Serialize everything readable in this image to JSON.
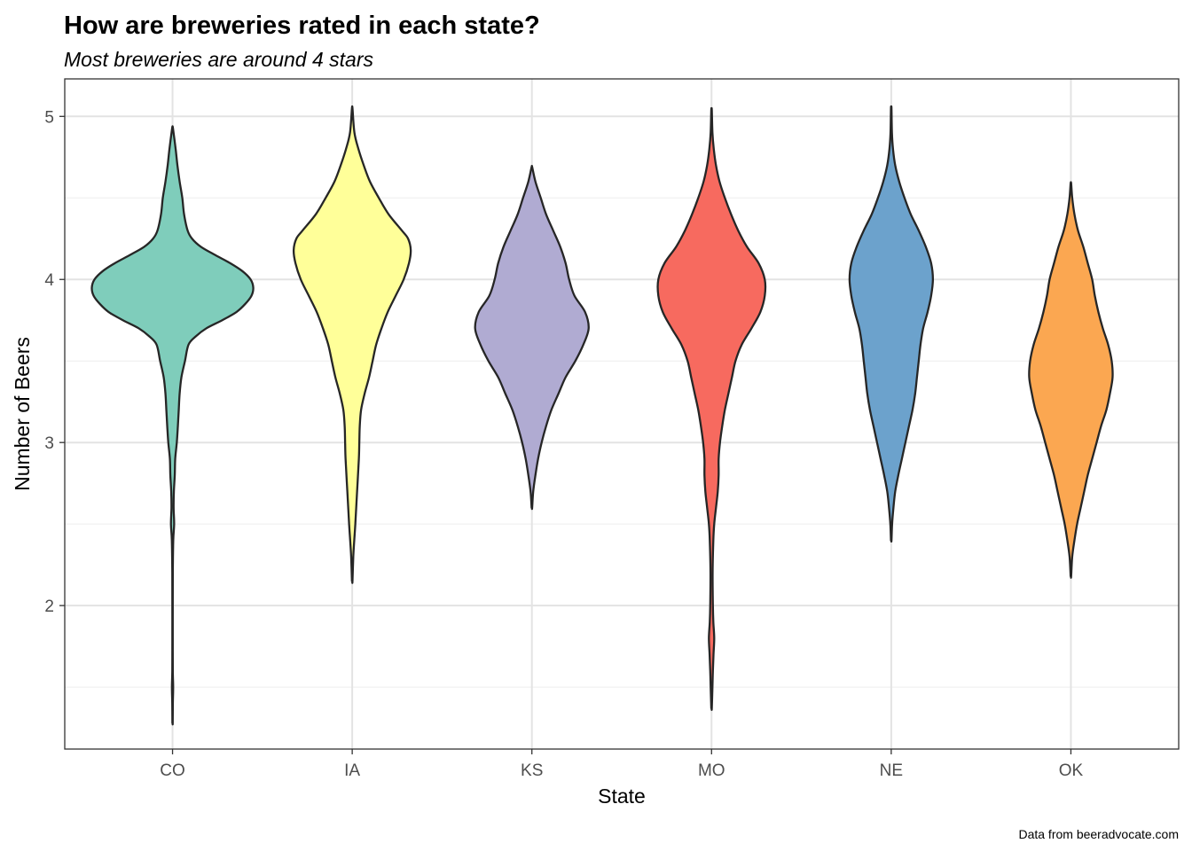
{
  "chart_data": {
    "type": "violin",
    "title": "How are breweries rated in each state?",
    "subtitle": "Most breweries are around 4 stars",
    "xlabel": "State",
    "ylabel": "Number of Beers",
    "caption": "Data from beeradvocate.com",
    "ylim": [
      1.12,
      5.23
    ],
    "yticks": [
      2,
      3,
      4,
      5
    ],
    "grid": true,
    "legend": "none",
    "categories": [
      "CO",
      "IA",
      "KS",
      "MO",
      "NE",
      "OK"
    ],
    "series": [
      {
        "category": "CO",
        "color": "#7fcdbb",
        "min": 1.28,
        "max": 4.93,
        "profile": [
          [
            1.28,
            0.2
          ],
          [
            1.4,
            0.35
          ],
          [
            1.5,
            0.7
          ],
          [
            1.6,
            0.3
          ],
          [
            1.8,
            0.25
          ],
          [
            2.0,
            0.25
          ],
          [
            2.2,
            0.3
          ],
          [
            2.4,
            0.8
          ],
          [
            2.5,
            1.8
          ],
          [
            2.6,
            1.2
          ],
          [
            2.7,
            1.5
          ],
          [
            2.8,
            2.5
          ],
          [
            2.9,
            3.0
          ],
          [
            3.0,
            4.8
          ],
          [
            3.1,
            6.0
          ],
          [
            3.2,
            7.0
          ],
          [
            3.3,
            8.0
          ],
          [
            3.4,
            10.0
          ],
          [
            3.5,
            14.0
          ],
          [
            3.6,
            18.0
          ],
          [
            3.65,
            26.0
          ],
          [
            3.7,
            38.0
          ],
          [
            3.75,
            56.0
          ],
          [
            3.8,
            72.0
          ],
          [
            3.85,
            82.0
          ],
          [
            3.9,
            89.0
          ],
          [
            3.95,
            91.0
          ],
          [
            4.0,
            88.0
          ],
          [
            4.05,
            79.0
          ],
          [
            4.1,
            65.0
          ],
          [
            4.15,
            48.0
          ],
          [
            4.2,
            32.0
          ],
          [
            4.25,
            22.0
          ],
          [
            4.3,
            17.0
          ],
          [
            4.4,
            13.0
          ],
          [
            4.5,
            11.0
          ],
          [
            4.6,
            8.0
          ],
          [
            4.7,
            5.5
          ],
          [
            4.8,
            3.5
          ],
          [
            4.93,
            0.4
          ]
        ]
      },
      {
        "category": "IA",
        "color": "#ffff99",
        "min": 2.15,
        "max": 5.05,
        "profile": [
          [
            2.15,
            0.3
          ],
          [
            2.3,
            1.2
          ],
          [
            2.4,
            2.3
          ],
          [
            2.5,
            3.5
          ],
          [
            2.7,
            5.5
          ],
          [
            2.9,
            7.5
          ],
          [
            3.0,
            8.0
          ],
          [
            3.1,
            8.5
          ],
          [
            3.2,
            10.0
          ],
          [
            3.3,
            14.0
          ],
          [
            3.4,
            19.0
          ],
          [
            3.5,
            23.0
          ],
          [
            3.6,
            27.0
          ],
          [
            3.7,
            33.0
          ],
          [
            3.8,
            40.0
          ],
          [
            3.9,
            49.0
          ],
          [
            4.0,
            58.0
          ],
          [
            4.1,
            64.0
          ],
          [
            4.18,
            66.0
          ],
          [
            4.25,
            63.0
          ],
          [
            4.3,
            56.0
          ],
          [
            4.4,
            41.0
          ],
          [
            4.5,
            30.0
          ],
          [
            4.6,
            20.0
          ],
          [
            4.7,
            13.0
          ],
          [
            4.8,
            7.0
          ],
          [
            4.9,
            2.5
          ],
          [
            5.05,
            0.3
          ]
        ]
      },
      {
        "category": "KS",
        "color": "#b0abd2",
        "min": 2.6,
        "max": 4.69,
        "profile": [
          [
            2.6,
            0.3
          ],
          [
            2.7,
            1.5
          ],
          [
            2.8,
            4.0
          ],
          [
            2.9,
            7.0
          ],
          [
            3.0,
            11.0
          ],
          [
            3.1,
            16.0
          ],
          [
            3.2,
            22.0
          ],
          [
            3.3,
            30.0
          ],
          [
            3.4,
            38.0
          ],
          [
            3.5,
            49.0
          ],
          [
            3.6,
            58.0
          ],
          [
            3.7,
            64.0
          ],
          [
            3.8,
            60.0
          ],
          [
            3.9,
            48.0
          ],
          [
            4.0,
            42.0
          ],
          [
            4.1,
            38.0
          ],
          [
            4.2,
            32.0
          ],
          [
            4.3,
            24.0
          ],
          [
            4.4,
            16.0
          ],
          [
            4.5,
            10.0
          ],
          [
            4.6,
            4.0
          ],
          [
            4.69,
            0.3
          ]
        ]
      },
      {
        "category": "MO",
        "color": "#f76a5f",
        "min": 1.37,
        "max": 5.04,
        "profile": [
          [
            1.37,
            0.3
          ],
          [
            1.5,
            1.0
          ],
          [
            1.6,
            1.5
          ],
          [
            1.7,
            2.2
          ],
          [
            1.8,
            3.0
          ],
          [
            1.9,
            2.0
          ],
          [
            2.0,
            1.5
          ],
          [
            2.2,
            1.2
          ],
          [
            2.4,
            2.0
          ],
          [
            2.5,
            3.0
          ],
          [
            2.6,
            5.0
          ],
          [
            2.7,
            7.0
          ],
          [
            2.8,
            8.0
          ],
          [
            2.9,
            8.0
          ],
          [
            3.0,
            9.5
          ],
          [
            3.1,
            12.0
          ],
          [
            3.2,
            15.0
          ],
          [
            3.3,
            19.0
          ],
          [
            3.4,
            23.0
          ],
          [
            3.5,
            27.0
          ],
          [
            3.6,
            34.0
          ],
          [
            3.7,
            45.0
          ],
          [
            3.8,
            55.0
          ],
          [
            3.9,
            60.0
          ],
          [
            4.0,
            60.0
          ],
          [
            4.1,
            53.0
          ],
          [
            4.2,
            40.0
          ],
          [
            4.3,
            30.0
          ],
          [
            4.4,
            22.0
          ],
          [
            4.5,
            15.0
          ],
          [
            4.6,
            9.0
          ],
          [
            4.7,
            5.0
          ],
          [
            4.8,
            2.5
          ],
          [
            4.9,
            1.0
          ],
          [
            5.04,
            0.3
          ]
        ]
      },
      {
        "category": "NE",
        "color": "#6ca2cc",
        "min": 2.4,
        "max": 5.05,
        "profile": [
          [
            2.4,
            0.3
          ],
          [
            2.5,
            1.0
          ],
          [
            2.6,
            2.5
          ],
          [
            2.7,
            4.5
          ],
          [
            2.8,
            8.0
          ],
          [
            2.9,
            12.0
          ],
          [
            3.0,
            16.0
          ],
          [
            3.1,
            20.0
          ],
          [
            3.2,
            24.0
          ],
          [
            3.3,
            27.0
          ],
          [
            3.4,
            29.0
          ],
          [
            3.5,
            31.0
          ],
          [
            3.6,
            33.0
          ],
          [
            3.7,
            36.0
          ],
          [
            3.8,
            41.0
          ],
          [
            3.9,
            45.0
          ],
          [
            4.0,
            47.0
          ],
          [
            4.1,
            45.0
          ],
          [
            4.2,
            39.0
          ],
          [
            4.3,
            31.0
          ],
          [
            4.4,
            22.0
          ],
          [
            4.5,
            15.0
          ],
          [
            4.6,
            9.0
          ],
          [
            4.7,
            4.5
          ],
          [
            4.8,
            2.0
          ],
          [
            4.9,
            0.8
          ],
          [
            5.05,
            0.3
          ]
        ]
      },
      {
        "category": "OK",
        "color": "#fba751",
        "min": 2.18,
        "max": 4.59,
        "profile": [
          [
            2.18,
            0.3
          ],
          [
            2.3,
            1.5
          ],
          [
            2.4,
            4.0
          ],
          [
            2.5,
            7.0
          ],
          [
            2.6,
            11.0
          ],
          [
            2.7,
            15.0
          ],
          [
            2.8,
            19.0
          ],
          [
            2.9,
            24.0
          ],
          [
            3.0,
            29.0
          ],
          [
            3.1,
            34.0
          ],
          [
            3.2,
            40.0
          ],
          [
            3.3,
            44.0
          ],
          [
            3.4,
            47.0
          ],
          [
            3.5,
            46.0
          ],
          [
            3.6,
            42.0
          ],
          [
            3.7,
            36.0
          ],
          [
            3.8,
            31.0
          ],
          [
            3.9,
            27.0
          ],
          [
            4.0,
            24.0
          ],
          [
            4.1,
            19.0
          ],
          [
            4.2,
            14.0
          ],
          [
            4.3,
            8.0
          ],
          [
            4.4,
            4.0
          ],
          [
            4.5,
            1.5
          ],
          [
            4.59,
            0.3
          ]
        ]
      }
    ]
  }
}
